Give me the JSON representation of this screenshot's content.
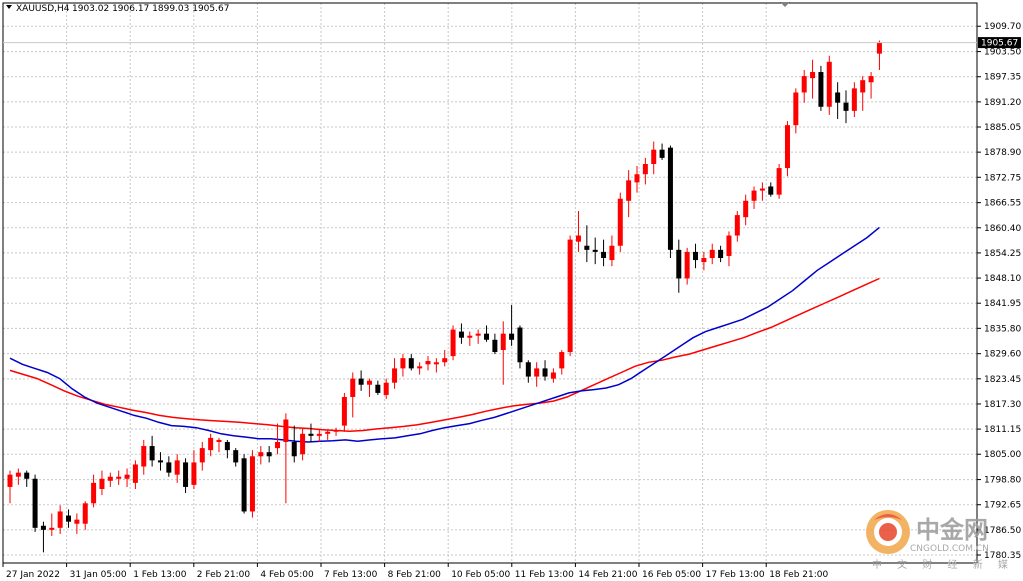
{
  "header": {
    "symbol": "XAUUSD,H4",
    "ohlc": "1903.02 1906.17 1899.03 1905.67"
  },
  "current_price_label": "1905.67",
  "watermark": {
    "name_cn": "中金网",
    "site": "CNGOLD.COM.CN",
    "tagline": "中 文 财 经 新 媒 体"
  },
  "colors": {
    "bull": "#ff0000",
    "bear": "#000000",
    "ma_fast": "#0000cc",
    "ma_slow": "#ff0000",
    "grid": "#c8c8c8",
    "price_tag": "#000000"
  },
  "chart_data": {
    "type": "candlestick",
    "ylim": [
      1780.35,
      1912.45
    ],
    "y_ticks": [
      "1909.70",
      "1903.50",
      "1897.35",
      "1891.20",
      "1885.05",
      "1878.90",
      "1872.75",
      "1866.55",
      "1860.40",
      "1854.25",
      "1848.10",
      "1841.95",
      "1835.80",
      "1829.60",
      "1823.45",
      "1817.30",
      "1811.15",
      "1805.00",
      "1798.80",
      "1792.65",
      "1786.50",
      "1780.35"
    ],
    "x_ticks": [
      "27 Jan 2022",
      "31 Jan 05:00",
      "1 Feb 13:00",
      "2 Feb 21:00",
      "4 Feb 05:00",
      "7 Feb 13:00",
      "8 Feb 21:00",
      "10 Feb 05:00",
      "11 Feb 13:00",
      "14 Feb 21:00",
      "16 Feb 05:00",
      "17 Feb 13:00",
      "18 Feb 21:00"
    ],
    "candles": [
      {
        "o": 1797.0,
        "h": 1801.0,
        "l": 1793.0,
        "c": 1800.0
      },
      {
        "o": 1799.5,
        "h": 1801.5,
        "l": 1797.5,
        "c": 1800.5
      },
      {
        "o": 1800.5,
        "h": 1801.0,
        "l": 1797.0,
        "c": 1799.0
      },
      {
        "o": 1799.0,
        "h": 1800.0,
        "l": 1786.0,
        "c": 1787.0
      },
      {
        "o": 1787.5,
        "h": 1788.5,
        "l": 1781.0,
        "c": 1786.5
      },
      {
        "o": 1786.5,
        "h": 1790.5,
        "l": 1785.0,
        "c": 1787.0
      },
      {
        "o": 1787.0,
        "h": 1792.5,
        "l": 1785.5,
        "c": 1791.0
      },
      {
        "o": 1790.0,
        "h": 1791.5,
        "l": 1787.0,
        "c": 1788.5
      },
      {
        "o": 1788.0,
        "h": 1790.5,
        "l": 1785.5,
        "c": 1789.0
      },
      {
        "o": 1788.0,
        "h": 1793.5,
        "l": 1786.5,
        "c": 1793.0
      },
      {
        "o": 1793.0,
        "h": 1800.0,
        "l": 1792.0,
        "c": 1798.0
      },
      {
        "o": 1796.5,
        "h": 1801.0,
        "l": 1795.0,
        "c": 1799.0
      },
      {
        "o": 1798.5,
        "h": 1800.5,
        "l": 1797.0,
        "c": 1799.5
      },
      {
        "o": 1799.0,
        "h": 1801.0,
        "l": 1797.5,
        "c": 1799.5
      },
      {
        "o": 1799.0,
        "h": 1801.5,
        "l": 1797.0,
        "c": 1800.0
      },
      {
        "o": 1798.0,
        "h": 1803.5,
        "l": 1796.5,
        "c": 1802.5
      },
      {
        "o": 1802.0,
        "h": 1808.5,
        "l": 1800.0,
        "c": 1807.0
      },
      {
        "o": 1807.0,
        "h": 1809.5,
        "l": 1802.0,
        "c": 1803.5
      },
      {
        "o": 1803.5,
        "h": 1805.5,
        "l": 1801.0,
        "c": 1803.0
      },
      {
        "o": 1803.0,
        "h": 1804.5,
        "l": 1799.5,
        "c": 1800.5
      },
      {
        "o": 1800.0,
        "h": 1805.0,
        "l": 1798.0,
        "c": 1803.5
      },
      {
        "o": 1803.0,
        "h": 1804.0,
        "l": 1795.5,
        "c": 1797.0
      },
      {
        "o": 1797.5,
        "h": 1806.0,
        "l": 1796.5,
        "c": 1803.0
      },
      {
        "o": 1803.0,
        "h": 1808.0,
        "l": 1801.0,
        "c": 1806.5
      },
      {
        "o": 1806.0,
        "h": 1810.0,
        "l": 1804.5,
        "c": 1809.0
      },
      {
        "o": 1808.0,
        "h": 1809.0,
        "l": 1805.5,
        "c": 1808.5
      },
      {
        "o": 1808.0,
        "h": 1808.5,
        "l": 1804.0,
        "c": 1806.0
      },
      {
        "o": 1806.0,
        "h": 1806.5,
        "l": 1802.0,
        "c": 1803.0
      },
      {
        "o": 1804.0,
        "h": 1805.0,
        "l": 1790.5,
        "c": 1791.0
      },
      {
        "o": 1791.0,
        "h": 1806.0,
        "l": 1789.5,
        "c": 1804.5
      },
      {
        "o": 1804.5,
        "h": 1807.0,
        "l": 1802.5,
        "c": 1805.5
      },
      {
        "o": 1805.5,
        "h": 1807.0,
        "l": 1803.0,
        "c": 1804.5
      },
      {
        "o": 1806.5,
        "h": 1812.5,
        "l": 1805.0,
        "c": 1808.0
      },
      {
        "o": 1808.0,
        "h": 1815.0,
        "l": 1793.0,
        "c": 1813.5
      },
      {
        "o": 1808.0,
        "h": 1812.0,
        "l": 1803.0,
        "c": 1804.5
      },
      {
        "o": 1805.0,
        "h": 1811.5,
        "l": 1803.5,
        "c": 1810.0
      },
      {
        "o": 1810.0,
        "h": 1812.5,
        "l": 1808.0,
        "c": 1809.5
      },
      {
        "o": 1809.5,
        "h": 1811.0,
        "l": 1808.0,
        "c": 1810.0
      },
      {
        "o": 1810.0,
        "h": 1811.0,
        "l": 1808.5,
        "c": 1810.5
      },
      {
        "o": 1810.5,
        "h": 1811.5,
        "l": 1809.5,
        "c": 1810.8
      },
      {
        "o": 1812.0,
        "h": 1820.0,
        "l": 1810.5,
        "c": 1819.0
      },
      {
        "o": 1819.0,
        "h": 1825.0,
        "l": 1814.0,
        "c": 1823.5
      },
      {
        "o": 1823.5,
        "h": 1825.5,
        "l": 1820.5,
        "c": 1822.0
      },
      {
        "o": 1822.0,
        "h": 1823.5,
        "l": 1819.0,
        "c": 1823.0
      },
      {
        "o": 1822.0,
        "h": 1823.0,
        "l": 1819.5,
        "c": 1820.0
      },
      {
        "o": 1819.5,
        "h": 1823.5,
        "l": 1818.5,
        "c": 1822.5
      },
      {
        "o": 1822.5,
        "h": 1828.5,
        "l": 1821.0,
        "c": 1826.0
      },
      {
        "o": 1826.0,
        "h": 1829.5,
        "l": 1824.0,
        "c": 1828.5
      },
      {
        "o": 1828.5,
        "h": 1829.5,
        "l": 1825.5,
        "c": 1826.0
      },
      {
        "o": 1826.0,
        "h": 1827.5,
        "l": 1824.5,
        "c": 1826.5
      },
      {
        "o": 1827.0,
        "h": 1829.0,
        "l": 1825.5,
        "c": 1827.8
      },
      {
        "o": 1827.0,
        "h": 1828.5,
        "l": 1825.0,
        "c": 1827.5
      },
      {
        "o": 1827.5,
        "h": 1830.5,
        "l": 1826.5,
        "c": 1828.5
      },
      {
        "o": 1829.0,
        "h": 1836.5,
        "l": 1828.0,
        "c": 1835.5
      },
      {
        "o": 1835.0,
        "h": 1837.0,
        "l": 1832.0,
        "c": 1833.5
      },
      {
        "o": 1833.5,
        "h": 1835.0,
        "l": 1831.5,
        "c": 1834.0
      },
      {
        "o": 1834.0,
        "h": 1835.5,
        "l": 1832.0,
        "c": 1834.5
      },
      {
        "o": 1834.5,
        "h": 1836.5,
        "l": 1832.5,
        "c": 1833.0
      },
      {
        "o": 1833.0,
        "h": 1834.5,
        "l": 1829.5,
        "c": 1830.0
      },
      {
        "o": 1830.5,
        "h": 1837.5,
        "l": 1822.0,
        "c": 1834.5
      },
      {
        "o": 1834.5,
        "h": 1841.5,
        "l": 1831.5,
        "c": 1833.0
      },
      {
        "o": 1836.0,
        "h": 1836.5,
        "l": 1826.0,
        "c": 1827.5
      },
      {
        "o": 1827.5,
        "h": 1828.0,
        "l": 1822.5,
        "c": 1824.0
      },
      {
        "o": 1824.0,
        "h": 1827.5,
        "l": 1821.5,
        "c": 1826.0
      },
      {
        "o": 1826.0,
        "h": 1828.0,
        "l": 1823.0,
        "c": 1824.0
      },
      {
        "o": 1823.5,
        "h": 1826.0,
        "l": 1822.5,
        "c": 1825.0
      },
      {
        "o": 1826.0,
        "h": 1830.5,
        "l": 1824.5,
        "c": 1830.0
      },
      {
        "o": 1830.0,
        "h": 1858.5,
        "l": 1829.0,
        "c": 1857.5
      },
      {
        "o": 1857.0,
        "h": 1864.5,
        "l": 1854.5,
        "c": 1858.5
      },
      {
        "o": 1856.0,
        "h": 1861.0,
        "l": 1852.0,
        "c": 1855.0
      },
      {
        "o": 1855.0,
        "h": 1858.0,
        "l": 1851.5,
        "c": 1854.5
      },
      {
        "o": 1854.5,
        "h": 1857.5,
        "l": 1851.0,
        "c": 1853.0
      },
      {
        "o": 1852.5,
        "h": 1858.5,
        "l": 1851.0,
        "c": 1856.0
      },
      {
        "o": 1856.0,
        "h": 1869.0,
        "l": 1854.5,
        "c": 1867.5
      },
      {
        "o": 1867.0,
        "h": 1874.5,
        "l": 1863.0,
        "c": 1872.0
      },
      {
        "o": 1871.5,
        "h": 1875.5,
        "l": 1869.0,
        "c": 1873.5
      },
      {
        "o": 1873.5,
        "h": 1877.5,
        "l": 1871.0,
        "c": 1876.0
      },
      {
        "o": 1876.0,
        "h": 1881.5,
        "l": 1873.5,
        "c": 1879.5
      },
      {
        "o": 1879.5,
        "h": 1881.0,
        "l": 1877.0,
        "c": 1877.5
      },
      {
        "o": 1880.0,
        "h": 1880.5,
        "l": 1853.0,
        "c": 1855.0
      },
      {
        "o": 1855.0,
        "h": 1857.5,
        "l": 1844.5,
        "c": 1848.0
      },
      {
        "o": 1848.0,
        "h": 1855.5,
        "l": 1846.5,
        "c": 1854.5
      },
      {
        "o": 1854.5,
        "h": 1856.5,
        "l": 1850.5,
        "c": 1852.5
      },
      {
        "o": 1852.0,
        "h": 1854.5,
        "l": 1850.0,
        "c": 1853.0
      },
      {
        "o": 1853.0,
        "h": 1856.5,
        "l": 1851.5,
        "c": 1855.0
      },
      {
        "o": 1855.0,
        "h": 1856.0,
        "l": 1852.0,
        "c": 1853.0
      },
      {
        "o": 1853.5,
        "h": 1859.5,
        "l": 1851.0,
        "c": 1858.5
      },
      {
        "o": 1858.5,
        "h": 1864.5,
        "l": 1857.0,
        "c": 1863.5
      },
      {
        "o": 1863.0,
        "h": 1868.5,
        "l": 1861.0,
        "c": 1867.0
      },
      {
        "o": 1867.0,
        "h": 1870.5,
        "l": 1865.0,
        "c": 1869.5
      },
      {
        "o": 1869.5,
        "h": 1871.5,
        "l": 1867.0,
        "c": 1870.0
      },
      {
        "o": 1870.5,
        "h": 1871.5,
        "l": 1868.0,
        "c": 1868.5
      },
      {
        "o": 1868.5,
        "h": 1876.0,
        "l": 1867.5,
        "c": 1875.0
      },
      {
        "o": 1875.0,
        "h": 1886.5,
        "l": 1873.0,
        "c": 1885.5
      },
      {
        "o": 1885.5,
        "h": 1894.5,
        "l": 1883.5,
        "c": 1893.5
      },
      {
        "o": 1893.5,
        "h": 1899.0,
        "l": 1891.0,
        "c": 1897.5
      },
      {
        "o": 1897.0,
        "h": 1901.5,
        "l": 1892.0,
        "c": 1898.5
      },
      {
        "o": 1898.5,
        "h": 1900.0,
        "l": 1889.0,
        "c": 1890.0
      },
      {
        "o": 1890.0,
        "h": 1902.5,
        "l": 1888.0,
        "c": 1901.0
      },
      {
        "o": 1893.5,
        "h": 1896.0,
        "l": 1887.0,
        "c": 1891.0
      },
      {
        "o": 1891.0,
        "h": 1894.0,
        "l": 1886.0,
        "c": 1889.0
      },
      {
        "o": 1889.0,
        "h": 1896.0,
        "l": 1887.5,
        "c": 1894.5
      },
      {
        "o": 1893.5,
        "h": 1897.5,
        "l": 1889.0,
        "c": 1896.5
      },
      {
        "o": 1896.0,
        "h": 1898.5,
        "l": 1892.0,
        "c": 1897.5
      },
      {
        "o": 1903.0,
        "h": 1906.2,
        "l": 1899.0,
        "c": 1905.7
      }
    ],
    "ma_fast": [
      1828.5,
      1827.0,
      1826.0,
      1825.0,
      1823.5,
      1821.0,
      1819.0,
      1817.5,
      1816.5,
      1815.5,
      1814.5,
      1813.8,
      1812.8,
      1812.0,
      1811.8,
      1811.5,
      1810.8,
      1810.0,
      1809.5,
      1809.2,
      1808.8,
      1808.8,
      1808.5,
      1808.2,
      1808.0,
      1808.2,
      1808.3,
      1808.5,
      1808.2,
      1808.5,
      1808.8,
      1809.0,
      1809.5,
      1810.0,
      1810.8,
      1811.5,
      1812.0,
      1812.5,
      1813.3,
      1814.0,
      1815.0,
      1816.0,
      1817.0,
      1818.0,
      1819.0,
      1820.0,
      1820.5,
      1820.8,
      1821.2,
      1822.0,
      1823.5,
      1825.5,
      1827.5,
      1829.5,
      1831.5,
      1833.5,
      1835.0,
      1836.0,
      1837.0,
      1838.0,
      1839.5,
      1841.0,
      1843.0,
      1845.0,
      1847.5,
      1850.0,
      1852.0,
      1854.0,
      1856.0,
      1858.0,
      1860.5
    ],
    "ma_slow": [
      1825.5,
      1824.5,
      1823.5,
      1822.0,
      1820.5,
      1819.2,
      1818.2,
      1817.2,
      1816.5,
      1815.8,
      1815.2,
      1814.5,
      1814.0,
      1813.7,
      1813.4,
      1813.2,
      1813.0,
      1812.8,
      1812.5,
      1812.2,
      1811.8,
      1811.5,
      1811.3,
      1811.0,
      1810.8,
      1810.6,
      1810.8,
      1811.2,
      1811.5,
      1811.8,
      1812.2,
      1812.8,
      1813.4,
      1814.0,
      1814.7,
      1815.5,
      1816.2,
      1816.8,
      1817.2,
      1817.5,
      1818.0,
      1819.0,
      1820.5,
      1822.0,
      1823.5,
      1825.0,
      1826.5,
      1827.5,
      1828.0,
      1828.8,
      1829.5,
      1830.5,
      1831.5,
      1832.5,
      1833.5,
      1834.8,
      1836.0,
      1837.5,
      1839.0,
      1840.5,
      1842.0,
      1843.5,
      1845.0,
      1846.5,
      1848.0
    ],
    "ma_fast_start_index": 0,
    "ma_slow_start_index": 0
  }
}
